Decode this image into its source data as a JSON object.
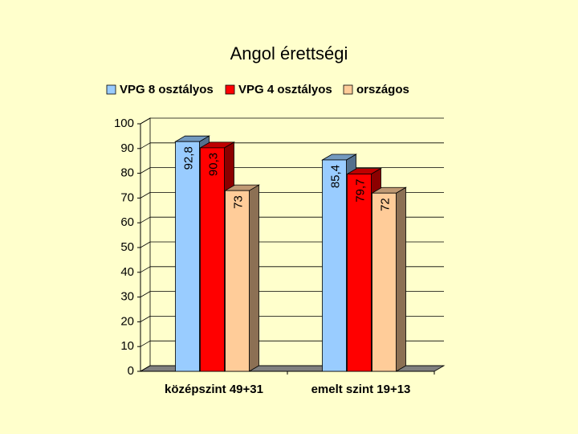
{
  "chart_data": {
    "type": "bar",
    "title": "Angol érettségi",
    "categories": [
      "középszint 49+31",
      "emelt szint 19+13"
    ],
    "series": [
      {
        "name": "VPG 8 osztályos",
        "color": "#99ccff",
        "values": [
          92.8,
          85.4
        ],
        "value_labels": [
          "92,8",
          "85,4"
        ]
      },
      {
        "name": "VPG 4 osztályos",
        "color": "#ff0000",
        "values": [
          90.3,
          79.7
        ],
        "value_labels": [
          "90,3",
          "79,7"
        ]
      },
      {
        "name": "országos",
        "color": "#ffcc99",
        "values": [
          73,
          72
        ],
        "value_labels": [
          "73",
          "72"
        ]
      }
    ],
    "ylim": [
      0,
      100
    ],
    "yticks": [
      0,
      10,
      20,
      30,
      40,
      50,
      60,
      70,
      80,
      90,
      100
    ],
    "grid": true
  }
}
